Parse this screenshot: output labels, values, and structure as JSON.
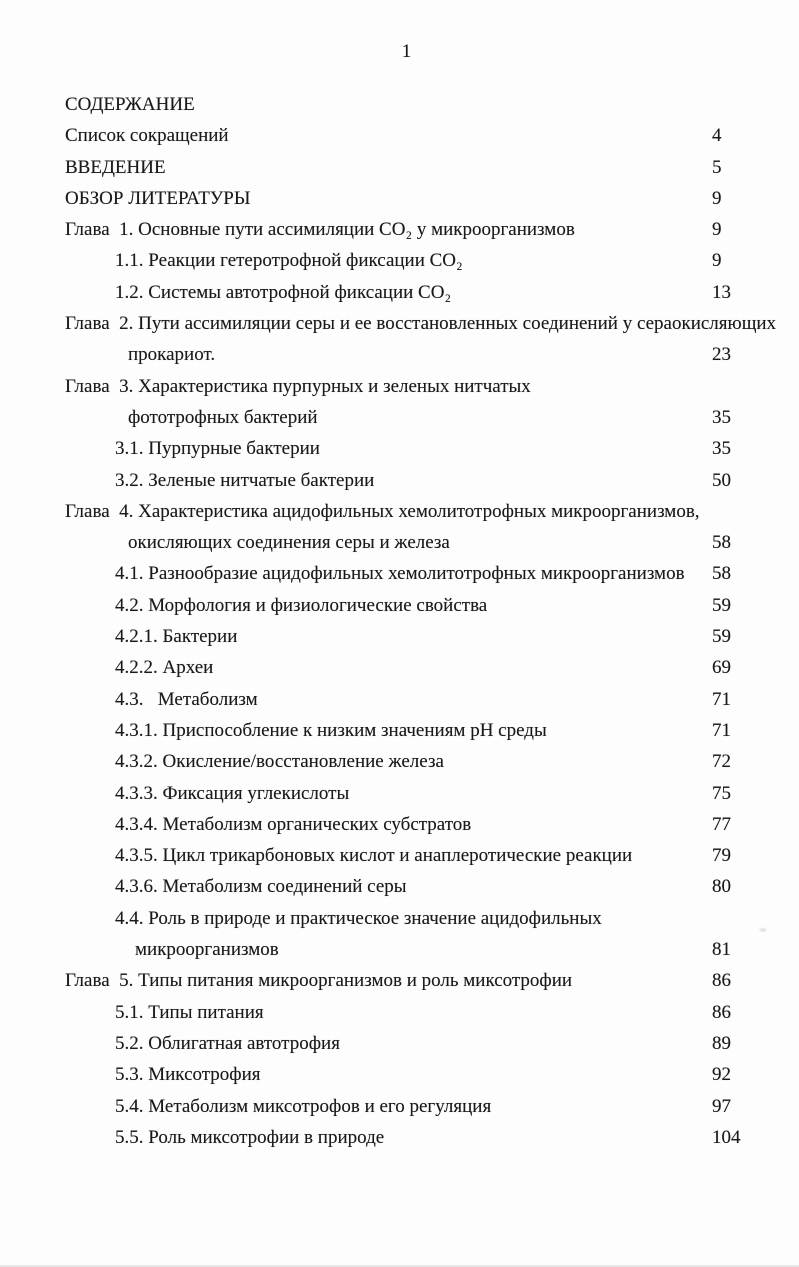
{
  "page": {
    "number": "1"
  },
  "colors": {
    "paper": "#fdfdfd",
    "ink": "#1a1a1a"
  },
  "toc": {
    "title": "СОДЕРЖАНИЕ",
    "rows": [
      {
        "level": "top",
        "name": "toc-title",
        "text": "СОДЕРЖАНИЕ",
        "page": ""
      },
      {
        "level": "top",
        "text": "Список сокращений",
        "page": "4"
      },
      {
        "level": "top",
        "text": "ВВЕДЕНИЕ",
        "page": "5"
      },
      {
        "level": "top",
        "text": "ОБЗОР ЛИТЕРАТУРЫ",
        "page": "9"
      },
      {
        "level": "chapter",
        "text": "Глава  1. Основные пути ассимиляции CO₂ у микроорганизмов",
        "page": "9"
      },
      {
        "level": "sub",
        "text": "1.1. Реакции гетеротрофной фиксации CO₂",
        "page": "9"
      },
      {
        "level": "sub",
        "text": "1.2. Системы автотрофной фиксации CO₂",
        "page": "13"
      },
      {
        "level": "chapter",
        "text": "Глава  2. Пути ассимиляции серы и ее восстановленных соединений у сераокисляющих",
        "page": ""
      },
      {
        "level": "cont",
        "text": "прокариот.",
        "page": "23"
      },
      {
        "level": "chapter",
        "text": "Глава  3. Характеристика пурпурных и зеленых нитчатых",
        "page": ""
      },
      {
        "level": "cont",
        "text": "фототрофных бактерий",
        "page": "35"
      },
      {
        "level": "sub",
        "text": "3.1. Пурпурные бактерии",
        "page": "35"
      },
      {
        "level": "sub",
        "text": "3.2. Зеленые нитчатые бактерии",
        "page": "50"
      },
      {
        "level": "chapter",
        "text": "Глава  4. Характеристика ацидофильных хемолитотрофных микроорганизмов,",
        "page": ""
      },
      {
        "level": "cont",
        "text": "окисляющих соединения серы и железа",
        "page": "58"
      },
      {
        "level": "sub",
        "text": "4.1. Разнообразие ацидофильных хемолитотрофных микроорганизмов",
        "page": "58"
      },
      {
        "level": "sub",
        "text": "4.2. Морфология и физиологические свойства",
        "page": "59"
      },
      {
        "level": "sub",
        "text": "4.2.1. Бактерии",
        "page": "59"
      },
      {
        "level": "sub",
        "text": "4.2.2. Археи",
        "page": "69"
      },
      {
        "level": "sub",
        "text": "4.3.   Метаболизм",
        "page": "71"
      },
      {
        "level": "sub",
        "text": "4.3.1. Приспособление к низким значениям pH среды",
        "page": "71"
      },
      {
        "level": "sub",
        "text": "4.3.2. Окисление/восстановление железа",
        "page": "72"
      },
      {
        "level": "sub",
        "text": "4.3.3. Фиксация углекислоты",
        "page": "75"
      },
      {
        "level": "sub",
        "text": "4.3.4. Метаболизм органических субстратов",
        "page": "77"
      },
      {
        "level": "sub",
        "text": "4.3.5. Цикл трикарбоновых кислот и анаплеротические реакции",
        "page": "79"
      },
      {
        "level": "sub",
        "text": "4.3.6. Метаболизм соединений серы",
        "page": "80"
      },
      {
        "level": "sub",
        "text": "4.4. Роль в природе и практическое значение ацидофильных",
        "page": ""
      },
      {
        "level": "cont2",
        "text": "микроорганизмов",
        "page": "81"
      },
      {
        "level": "chapter",
        "text": "Глава  5. Типы питания микроорганизмов и роль миксотрофии",
        "page": "86"
      },
      {
        "level": "sub",
        "text": "5.1. Типы питания",
        "page": "86"
      },
      {
        "level": "sub",
        "text": "5.2. Облигатная автотрофия",
        "page": "89"
      },
      {
        "level": "sub",
        "text": "5.3. Миксотрофия",
        "page": "92"
      },
      {
        "level": "sub",
        "text": "5.4. Метаболизм миксотрофов и его регуляция",
        "page": "97"
      },
      {
        "level": "sub",
        "text": "5.5. Роль миксотрофии в природе",
        "page": "104"
      }
    ]
  }
}
